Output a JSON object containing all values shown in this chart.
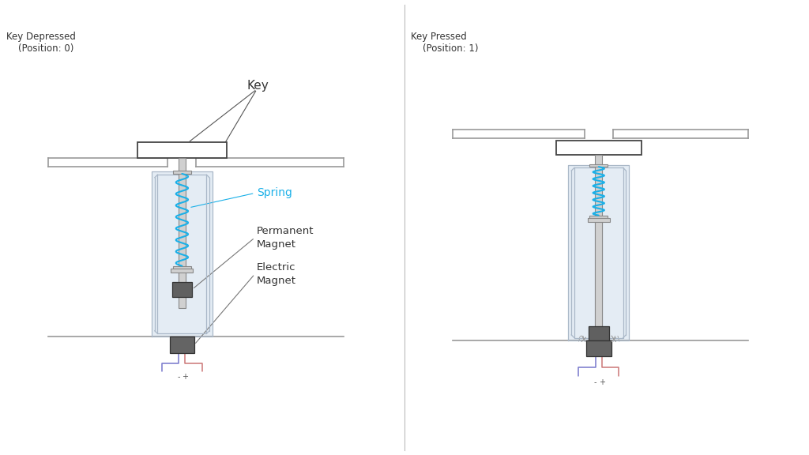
{
  "title_left": "Key Depressed",
  "subtitle_left": "(Position: 0)",
  "title_right": "Key Pressed",
  "subtitle_right": "(Position: 1)",
  "bg_color": "#ffffff",
  "outline_color": "#999999",
  "dark_gray": "#606060",
  "darker_gray": "#505050",
  "light_gray": "#d0d0d0",
  "lighter_gray": "#e8e8e8",
  "spring_color": "#1ab0e8",
  "text_color": "#333333",
  "wire_neg_color": "#7777cc",
  "wire_pos_color": "#cc7777",
  "housing_color": "#e0e8f0",
  "housing_edge": "#aabbcc"
}
